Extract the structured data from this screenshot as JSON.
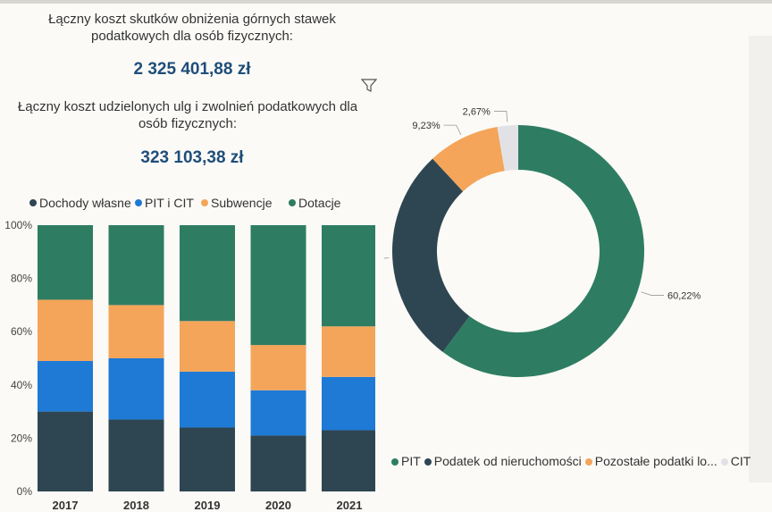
{
  "kpi1": {
    "label": "Łączny koszt skutków obniżenia górnych stawek podatkowych dla osób fizycznych:",
    "value": "2 325 401,88 zł"
  },
  "kpi2": {
    "label": "Łączny koszt udzielonych ulg i zwolnień podatkowych dla osób fizycznych:",
    "value": "323 103,38 zł"
  },
  "colors": {
    "dochody": "#2e4651",
    "pit_cit": "#1f7ad6",
    "subwencje": "#f4a55a",
    "dotacje": "#2e7d62",
    "pit": "#2e7d62",
    "nieruch": "#2e4651",
    "pozostale": "#f4a55a",
    "cit": "#e2e2e6"
  },
  "chart_data": [
    {
      "type": "bar",
      "stacked": true,
      "categories": [
        "2017",
        "2018",
        "2019",
        "2020",
        "2021"
      ],
      "series": [
        {
          "name": "Dochody własne",
          "values": [
            30,
            27,
            24,
            21,
            23
          ]
        },
        {
          "name": "PIT i CIT",
          "values": [
            19,
            23,
            21,
            17,
            20
          ]
        },
        {
          "name": "Subwencje",
          "values": [
            23,
            20,
            19,
            17,
            19
          ]
        },
        {
          "name": "Dotacje",
          "values": [
            28,
            30,
            36,
            45,
            38
          ]
        }
      ],
      "yticks": [
        "0%",
        "20%",
        "40%",
        "60%",
        "80%",
        "100%"
      ],
      "ylim": [
        0,
        100
      ],
      "legend_position": "top"
    },
    {
      "type": "pie",
      "donut": true,
      "slices": [
        {
          "name": "PIT",
          "value": 60.22,
          "label": "60,22%"
        },
        {
          "name": "Podatek od nieruchomości",
          "value": 27.88,
          "label": "27,88%"
        },
        {
          "name": "Pozostałe podatki lo...",
          "value": 9.23,
          "label": "9,23%"
        },
        {
          "name": "CIT",
          "value": 2.67,
          "label": "2,67%"
        }
      ],
      "legend_position": "bottom"
    }
  ]
}
